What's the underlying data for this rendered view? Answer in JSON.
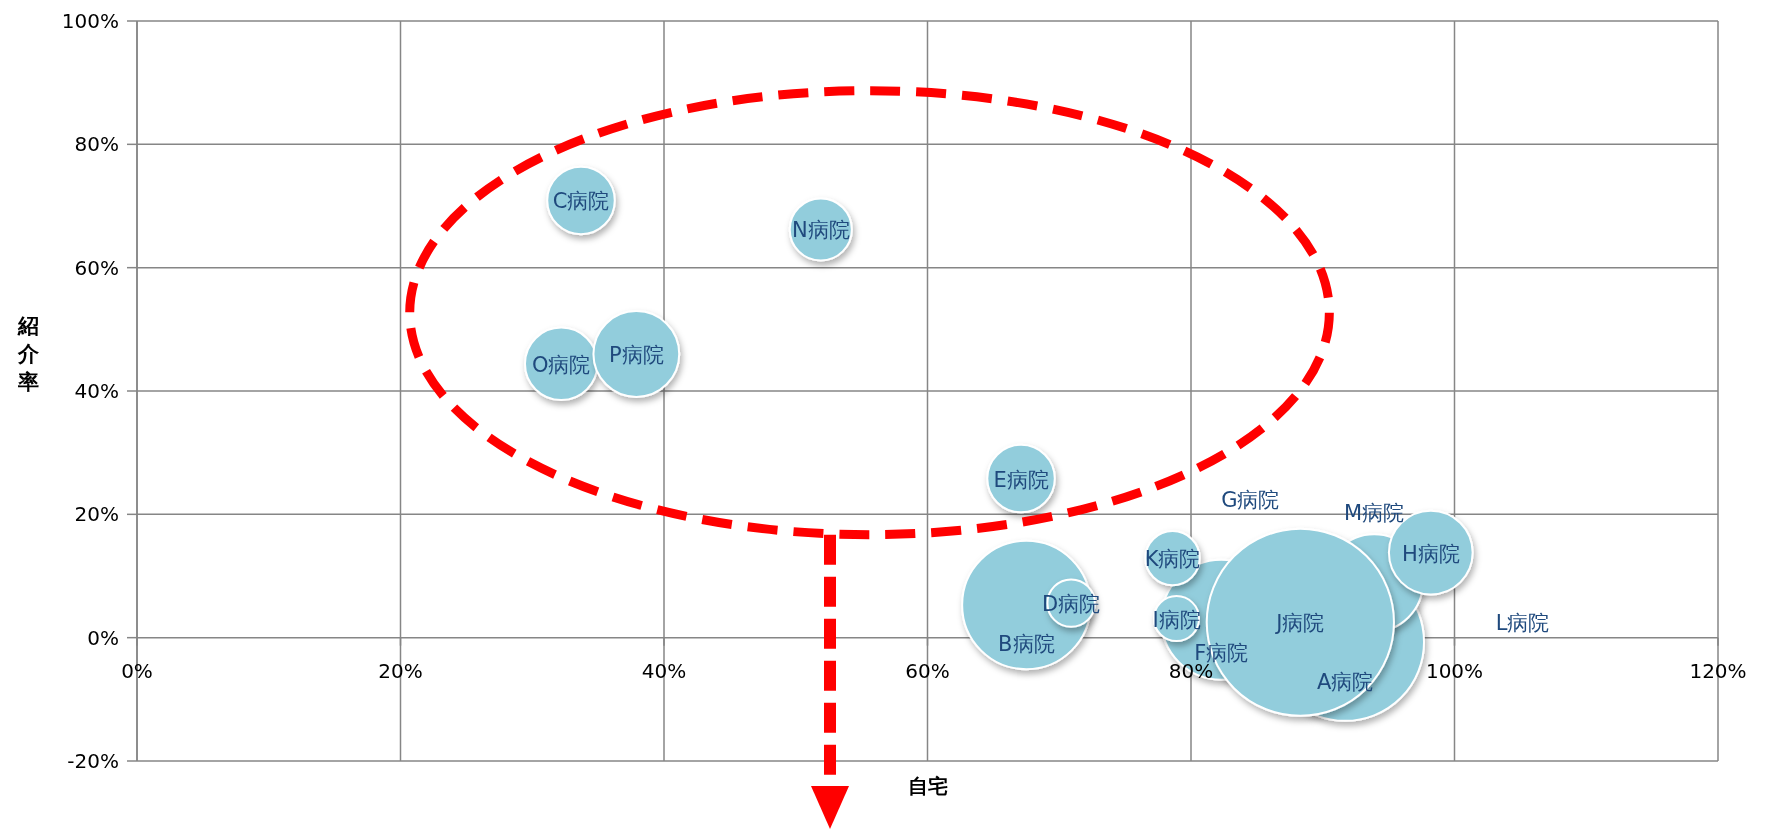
{
  "chart_data": {
    "type": "bubble",
    "xlabel": "自宅",
    "ylabel": "紹介率",
    "xlim": [
      0,
      120
    ],
    "ylim": [
      -20,
      100
    ],
    "xticks": [
      {
        "value": 0,
        "label": "0%"
      },
      {
        "value": 20,
        "label": "20%"
      },
      {
        "value": 40,
        "label": "40%"
      },
      {
        "value": 60,
        "label": "60%"
      },
      {
        "value": 80,
        "label": "80%"
      },
      {
        "value": 100,
        "label": "100%"
      },
      {
        "value": 120,
        "label": "120%"
      }
    ],
    "yticks": [
      {
        "value": -20,
        "label": "-20%"
      },
      {
        "value": 0,
        "label": "0%"
      },
      {
        "value": 20,
        "label": "20%"
      },
      {
        "value": 40,
        "label": "40%"
      },
      {
        "value": 60,
        "label": "60%"
      },
      {
        "value": 80,
        "label": "80%"
      },
      {
        "value": 100,
        "label": "100%"
      }
    ],
    "grid": true,
    "series": [
      {
        "color": "#92cddc",
        "x": [
          67.5,
          70.9,
          82.3,
          78.9,
          78.6,
          91.7,
          93.9,
          88.3,
          98.2,
          33.7,
          51.9,
          32.2,
          37.9,
          67.1
        ],
        "values": [
          5.3,
          5.6,
          2.9,
          3.1,
          12.9,
          -0.7,
          8.9,
          2.5,
          13.8,
          70.9,
          66.2,
          44.4,
          46.0,
          25.8
        ],
        "sizes": [
          0.47,
          0.064,
          0.41,
          0.058,
          0.084,
          0.71,
          0.27,
          1,
          0.2,
          0.13,
          0.11,
          0.15,
          0.21,
          0.13
        ],
        "value_labels": [
          "B病院",
          "D病院",
          "F病院",
          "I病院",
          "K病院",
          "A病院",
          "M病院",
          "J病院",
          "H病院",
          "C病院",
          "N病院",
          "O病院",
          "P病院",
          "E病院"
        ]
      }
    ],
    "annotations": [
      "G病院",
      "L病院"
    ]
  }
}
